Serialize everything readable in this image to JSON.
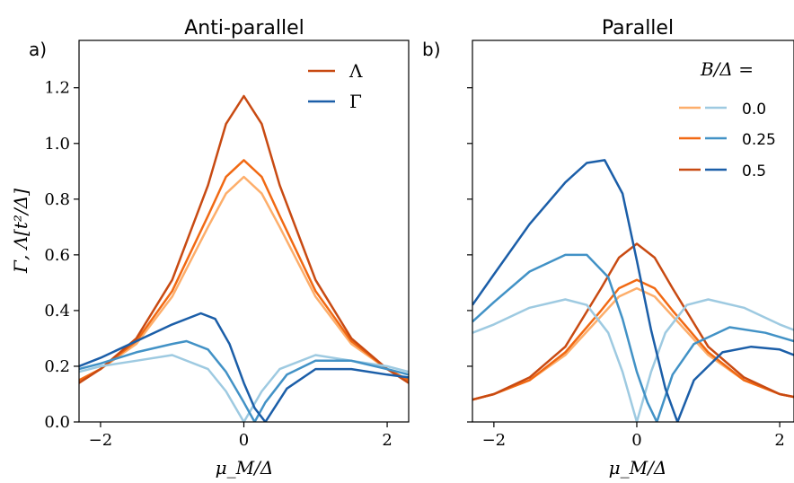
{
  "figure": {
    "panel_a_label": "a)",
    "panel_b_label": "b)",
    "ylabel": "Γ, Λ[t²/Δ]",
    "xlabel": "μ_M/Δ"
  },
  "colors": {
    "orange": [
      "#fdae6b",
      "#f16913",
      "#c84a12"
    ],
    "blue": [
      "#9ecae1",
      "#4292c6",
      "#1b5ea8"
    ]
  },
  "chart_data": [
    {
      "type": "line",
      "title": "Anti-parallel",
      "xlabel": "μ_M/Δ",
      "ylabel": "Γ, Λ[t²/Δ]",
      "xlim": [
        -2.3,
        2.3
      ],
      "ylim": [
        0.0,
        1.37
      ],
      "xticks": [
        -2,
        0,
        2
      ],
      "yticks": [
        0.0,
        0.2,
        0.4,
        0.6,
        0.8,
        1.0,
        1.2
      ],
      "legend": {
        "position": "top-right",
        "entries": [
          {
            "label": "Λ",
            "color": "#c84a12"
          },
          {
            "label": "Γ",
            "color": "#1b5ea8"
          }
        ]
      },
      "series": [
        {
          "color": "#fdae6b",
          "x": [
            -2.3,
            -2.0,
            -1.5,
            -1.0,
            -0.5,
            -0.25,
            0.0,
            0.25,
            0.5,
            1.0,
            1.5,
            2.0,
            2.3
          ],
          "y": [
            0.15,
            0.19,
            0.28,
            0.45,
            0.7,
            0.82,
            0.88,
            0.82,
            0.7,
            0.45,
            0.28,
            0.19,
            0.15
          ]
        },
        {
          "color": "#f16913",
          "x": [
            -2.3,
            -2.0,
            -1.5,
            -1.0,
            -0.5,
            -0.25,
            0.0,
            0.25,
            0.5,
            1.0,
            1.5,
            2.0,
            2.3
          ],
          "y": [
            0.15,
            0.19,
            0.29,
            0.47,
            0.74,
            0.88,
            0.94,
            0.88,
            0.74,
            0.47,
            0.29,
            0.19,
            0.15
          ]
        },
        {
          "color": "#c84a12",
          "x": [
            -2.3,
            -2.0,
            -1.5,
            -1.0,
            -0.5,
            -0.25,
            0.0,
            0.25,
            0.5,
            1.0,
            1.5,
            2.0,
            2.3
          ],
          "y": [
            0.14,
            0.19,
            0.3,
            0.51,
            0.85,
            1.07,
            1.17,
            1.07,
            0.85,
            0.51,
            0.3,
            0.19,
            0.14
          ]
        },
        {
          "color": "#9ecae1",
          "x": [
            -2.3,
            -2.0,
            -1.5,
            -1.0,
            -0.5,
            -0.25,
            0.0,
            0.25,
            0.5,
            1.0,
            1.5,
            2.0,
            2.3
          ],
          "y": [
            0.18,
            0.2,
            0.22,
            0.24,
            0.19,
            0.11,
            0.0,
            0.11,
            0.19,
            0.24,
            0.22,
            0.2,
            0.18
          ]
        },
        {
          "color": "#4292c6",
          "x": [
            -2.3,
            -2.0,
            -1.5,
            -1.0,
            -0.8,
            -0.5,
            -0.25,
            0.0,
            0.15,
            0.3,
            0.6,
            1.0,
            1.5,
            2.0,
            2.3
          ],
          "y": [
            0.19,
            0.21,
            0.25,
            0.28,
            0.29,
            0.26,
            0.18,
            0.07,
            0.0,
            0.07,
            0.17,
            0.22,
            0.22,
            0.19,
            0.17
          ]
        },
        {
          "color": "#1b5ea8",
          "x": [
            -2.3,
            -2.0,
            -1.5,
            -1.0,
            -0.6,
            -0.4,
            -0.2,
            0.0,
            0.15,
            0.3,
            0.6,
            1.0,
            1.5,
            2.0,
            2.3
          ],
          "y": [
            0.2,
            0.23,
            0.29,
            0.35,
            0.39,
            0.37,
            0.28,
            0.14,
            0.05,
            0.0,
            0.12,
            0.19,
            0.19,
            0.17,
            0.16
          ]
        }
      ]
    },
    {
      "type": "line",
      "title": "Parallel",
      "xlabel": "μ_M/Δ",
      "xlim": [
        -2.3,
        2.2
      ],
      "ylim": [
        0.0,
        1.37
      ],
      "xticks": [
        -2,
        0,
        2
      ],
      "legend": {
        "position": "top-right",
        "title": "B/Δ =",
        "entries": [
          {
            "label": "0.0",
            "colors": [
              "#fdae6b",
              "#9ecae1"
            ]
          },
          {
            "label": "0.25",
            "colors": [
              "#f16913",
              "#4292c6"
            ]
          },
          {
            "label": "0.5",
            "colors": [
              "#c84a12",
              "#1b5ea8"
            ]
          }
        ]
      },
      "series": [
        {
          "color": "#fdae6b",
          "x": [
            -2.3,
            -2.0,
            -1.5,
            -1.0,
            -0.5,
            -0.25,
            0.0,
            0.25,
            0.5,
            1.0,
            1.5,
            2.0,
            2.2
          ],
          "y": [
            0.08,
            0.1,
            0.15,
            0.24,
            0.38,
            0.45,
            0.48,
            0.45,
            0.38,
            0.24,
            0.15,
            0.1,
            0.09
          ]
        },
        {
          "color": "#f16913",
          "x": [
            -2.3,
            -2.0,
            -1.5,
            -1.0,
            -0.5,
            -0.25,
            0.0,
            0.25,
            0.5,
            1.0,
            1.5,
            2.0,
            2.2
          ],
          "y": [
            0.08,
            0.1,
            0.15,
            0.25,
            0.4,
            0.48,
            0.51,
            0.48,
            0.4,
            0.25,
            0.15,
            0.1,
            0.09
          ]
        },
        {
          "color": "#c84a12",
          "x": [
            -2.3,
            -2.0,
            -1.5,
            -1.0,
            -0.5,
            -0.25,
            0.0,
            0.25,
            0.5,
            1.0,
            1.5,
            2.0,
            2.2
          ],
          "y": [
            0.08,
            0.1,
            0.16,
            0.27,
            0.48,
            0.59,
            0.64,
            0.59,
            0.48,
            0.27,
            0.16,
            0.1,
            0.09
          ]
        },
        {
          "color": "#9ecae1",
          "x": [
            -2.3,
            -2.0,
            -1.5,
            -1.0,
            -0.7,
            -0.4,
            -0.2,
            0.0,
            0.2,
            0.4,
            0.7,
            1.0,
            1.5,
            2.0,
            2.2
          ],
          "y": [
            0.32,
            0.35,
            0.41,
            0.44,
            0.42,
            0.32,
            0.18,
            0.0,
            0.18,
            0.32,
            0.42,
            0.44,
            0.41,
            0.35,
            0.33
          ]
        },
        {
          "color": "#4292c6",
          "x": [
            -2.3,
            -2.0,
            -1.5,
            -1.0,
            -0.7,
            -0.4,
            -0.2,
            0.0,
            0.15,
            0.28,
            0.5,
            0.8,
            1.3,
            1.8,
            2.2
          ],
          "y": [
            0.36,
            0.43,
            0.54,
            0.6,
            0.6,
            0.52,
            0.37,
            0.18,
            0.07,
            0.0,
            0.17,
            0.28,
            0.34,
            0.32,
            0.29
          ]
        },
        {
          "color": "#1b5ea8",
          "x": [
            -2.3,
            -2.0,
            -1.5,
            -1.0,
            -0.7,
            -0.45,
            -0.2,
            0.0,
            0.2,
            0.4,
            0.57,
            0.8,
            1.2,
            1.6,
            2.0,
            2.2
          ],
          "y": [
            0.42,
            0.53,
            0.71,
            0.86,
            0.93,
            0.94,
            0.82,
            0.58,
            0.33,
            0.12,
            0.0,
            0.15,
            0.25,
            0.27,
            0.26,
            0.24
          ]
        }
      ]
    }
  ]
}
